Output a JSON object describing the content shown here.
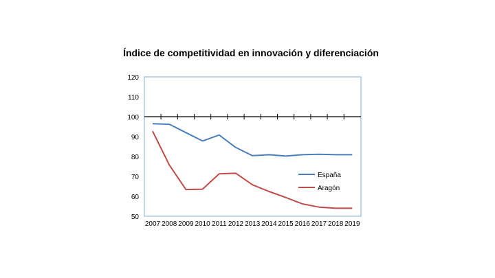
{
  "chart_data": {
    "type": "line",
    "title": "Índice de competitividad en innovación y diferenciación",
    "categories": [
      "2007",
      "2008",
      "2009",
      "2010",
      "2011",
      "2012",
      "2013",
      "2014",
      "2015",
      "2016",
      "2017",
      "2018",
      "2019"
    ],
    "series": [
      {
        "name": "España",
        "color": "#4a7ebb",
        "values": [
          96.5,
          96.2,
          92.0,
          87.8,
          90.8,
          84.5,
          80.4,
          80.9,
          80.2,
          80.9,
          81.1,
          80.9,
          80.9
        ]
      },
      {
        "name": "Aragón",
        "color": "#be4b48",
        "values": [
          92.7,
          75.8,
          63.4,
          63.6,
          71.3,
          71.6,
          65.8,
          62.4,
          59.4,
          56.2,
          54.6,
          54.0,
          54.0
        ]
      }
    ],
    "ylim": [
      50,
      120
    ],
    "yticks": [
      120,
      110,
      100,
      90,
      80,
      70,
      60,
      50
    ],
    "reference_line": 100,
    "legend_position": "center-right",
    "xlabel": "",
    "ylabel": ""
  }
}
